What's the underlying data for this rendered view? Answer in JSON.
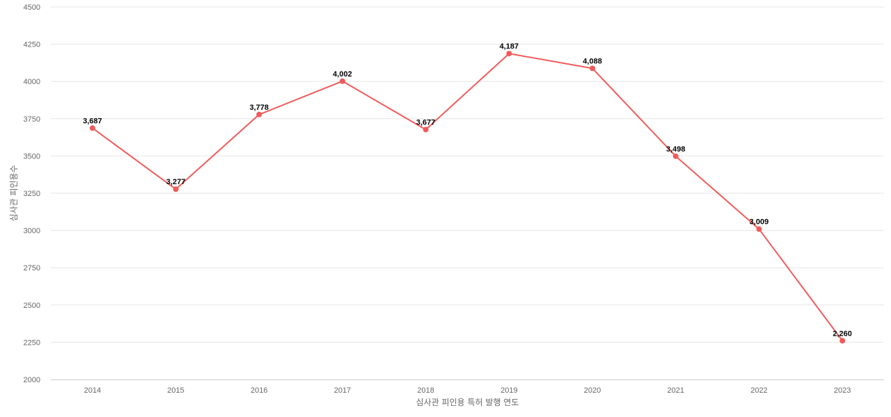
{
  "chart_data": {
    "type": "line",
    "categories": [
      "2014",
      "2015",
      "2016",
      "2017",
      "2018",
      "2019",
      "2020",
      "2021",
      "2022",
      "2023"
    ],
    "series": [
      {
        "values": [
          3687,
          3277,
          3778,
          4002,
          3677,
          4187,
          4088,
          3498,
          3009,
          2260
        ],
        "color": "#f05a5a"
      }
    ],
    "data_labels": [
      "3,687",
      "3,277",
      "3,778",
      "4,002",
      "3,677",
      "4,187",
      "4,088",
      "3,498",
      "3,009",
      "2,260"
    ],
    "xlabel": "심사관 피인용 특허 발행 연도",
    "ylabel": "심사관 피인용수",
    "ylim": [
      2000,
      4500
    ],
    "yticks": [
      "2000",
      "2250",
      "2500",
      "2750",
      "3000",
      "3250",
      "3500",
      "3750",
      "4000",
      "4250",
      "4500"
    ],
    "grid": true,
    "legend": "none"
  }
}
